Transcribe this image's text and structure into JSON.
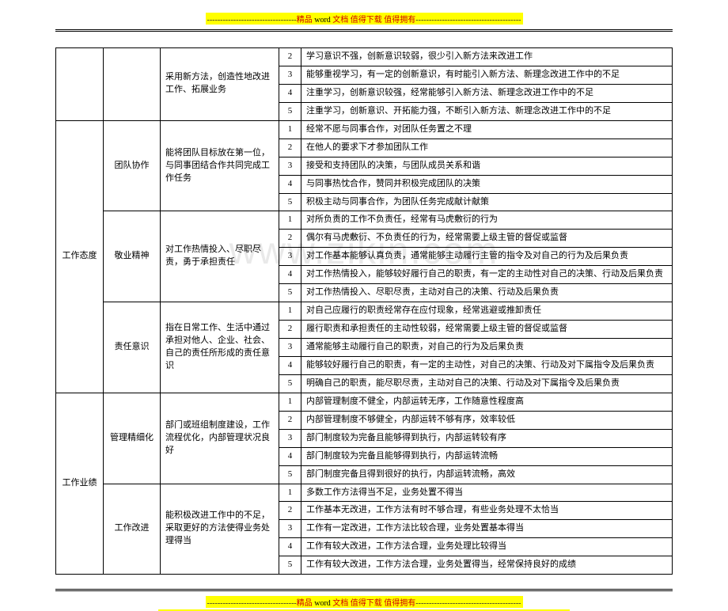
{
  "banner": {
    "dash_left": "----------------------------------",
    "text_red": "精品",
    "text_word": " word ",
    "text_doc": "文档  值得下载  值得拥有",
    "dash_right": "----------------------------------------"
  },
  "watermark": "www.zikin.com",
  "table": {
    "groups": [
      {
        "cat": "",
        "cat_rows": 4,
        "cat_show": false,
        "items": [
          {
            "name": "",
            "name_show": false,
            "desc": "采用新方法，创造性地改进工作、拓展业务",
            "desc_rows": 4,
            "rows": [
              {
                "n": "2",
                "t": "学习意识不强，创新意识较弱，很少引入新方法来改进工作"
              },
              {
                "n": "3",
                "t": "能够重视学习，有一定的创新意识，有时能引入新方法、新理念改进工作中的不足"
              },
              {
                "n": "4",
                "t": "注重学习，创新意识较强，经常能够引入新方法、新理念改进工作中的不足"
              },
              {
                "n": "5",
                "t": "注重学习，创新意识、开拓能力强，不断引入新方法、新理念改进工作中的不足"
              }
            ]
          }
        ]
      },
      {
        "cat": "工作态度",
        "cat_rows": 15,
        "cat_show": true,
        "items": [
          {
            "name": "团队协作",
            "name_show": true,
            "desc": "能将团队目标放在第一位，与同事团结合作共同完成工作任务",
            "desc_rows": 5,
            "rows": [
              {
                "n": "1",
                "t": "经常不愿与同事合作，对团队任务置之不理"
              },
              {
                "n": "2",
                "t": "在他人的要求下才参加团队工作"
              },
              {
                "n": "3",
                "t": "接受和支持团队的决策，与团队成员关系和谐"
              },
              {
                "n": "4",
                "t": "与同事热忱合作，赞同并积极完成团队的决策"
              },
              {
                "n": "5",
                "t": "积极主动与同事合作，为团队任务完成献计献策"
              }
            ]
          },
          {
            "name": "敬业精神",
            "name_show": true,
            "desc": "对工作热情投入、尽职尽责，勇于承担责任",
            "desc_rows": 5,
            "rows": [
              {
                "n": "1",
                "t": "对所负责的工作不负责任，经常有马虎敷衍的行为"
              },
              {
                "n": "2",
                "t": "偶尔有马虎敷衍、不负责任的行为，经常需要上级主管的督促或监督"
              },
              {
                "n": "3",
                "t": "对工作基本能够认真负责，通常能够主动履行主管的指令及对自己的行为及后果负责"
              },
              {
                "n": "4",
                "t": "对工作热情投入，能够较好履行自己的职责，有一定的主动性对自己的决策、行动及后果负责"
              },
              {
                "n": "5",
                "t": "对工作热情投入、尽职尽责，主动对自己的决策、行动及后果负责"
              }
            ]
          },
          {
            "name": "责任意识",
            "name_show": true,
            "desc": "指在日常工作、生活中通过承担对他人、企业、社会、自己的责任所形成的责任意识",
            "desc_rows": 5,
            "rows": [
              {
                "n": "1",
                "t": "对自己应履行的职责经常存在应付现象，经常逃避或推卸责任"
              },
              {
                "n": "2",
                "t": "履行职责和承担责任的主动性较弱，经常需要上级主管的督促或监督"
              },
              {
                "n": "3",
                "t": "通常能够主动履行自己的职责，对自己的行为及后果负责"
              },
              {
                "n": "4",
                "t": "能够较好履行自己的职责，有一定的主动性，对自己的决策、行动及对下属指令及后果负责"
              },
              {
                "n": "5",
                "t": "明确自己的职责，能尽职尽责，主动对自己的决策、行动及对下属指令及后果负责"
              }
            ]
          }
        ]
      },
      {
        "cat": "工作业绩",
        "cat_rows": 10,
        "cat_show": true,
        "items": [
          {
            "name": "管理精细化",
            "name_show": true,
            "desc": "部门或班组制度建设，工作流程优化，内部管理状况良好",
            "desc_rows": 5,
            "rows": [
              {
                "n": "1",
                "t": "内部管理制度不健全，内部运转无序，工作随意性程度高"
              },
              {
                "n": "2",
                "t": "内部管理制度不够健全，内部运转不够有序，效率较低"
              },
              {
                "n": "3",
                "t": "部门制度较为完备且能够得到执行，内部运转较有序"
              },
              {
                "n": "4",
                "t": "部门制度较为完备且能够得到执行，内部运转流畅"
              },
              {
                "n": "5",
                "t": "部门制度完备且得到很好的执行，内部运转流畅，高效"
              }
            ]
          },
          {
            "name": "工作改进",
            "name_show": true,
            "desc": "能积极改进工作中的不足，采取更好的方法使得业务处理得当",
            "desc_rows": 5,
            "rows": [
              {
                "n": "1",
                "t": "多数工作方法得当不足，业务处置不得当"
              },
              {
                "n": "2",
                "t": "工作基本无改进，工作方法有时不够合理，有些业务处理不太恰当"
              },
              {
                "n": "3",
                "t": "工作有一定改进，工作方法比较合理，业务处置基本得当"
              },
              {
                "n": "4",
                "t": "工作有较大改进，工作方法合理，业务处理比较得当"
              },
              {
                "n": "5",
                "t": "工作有较大改进，工作方法合理，业务处置得当，经常保持良好的成绩"
              }
            ]
          }
        ]
      }
    ]
  }
}
